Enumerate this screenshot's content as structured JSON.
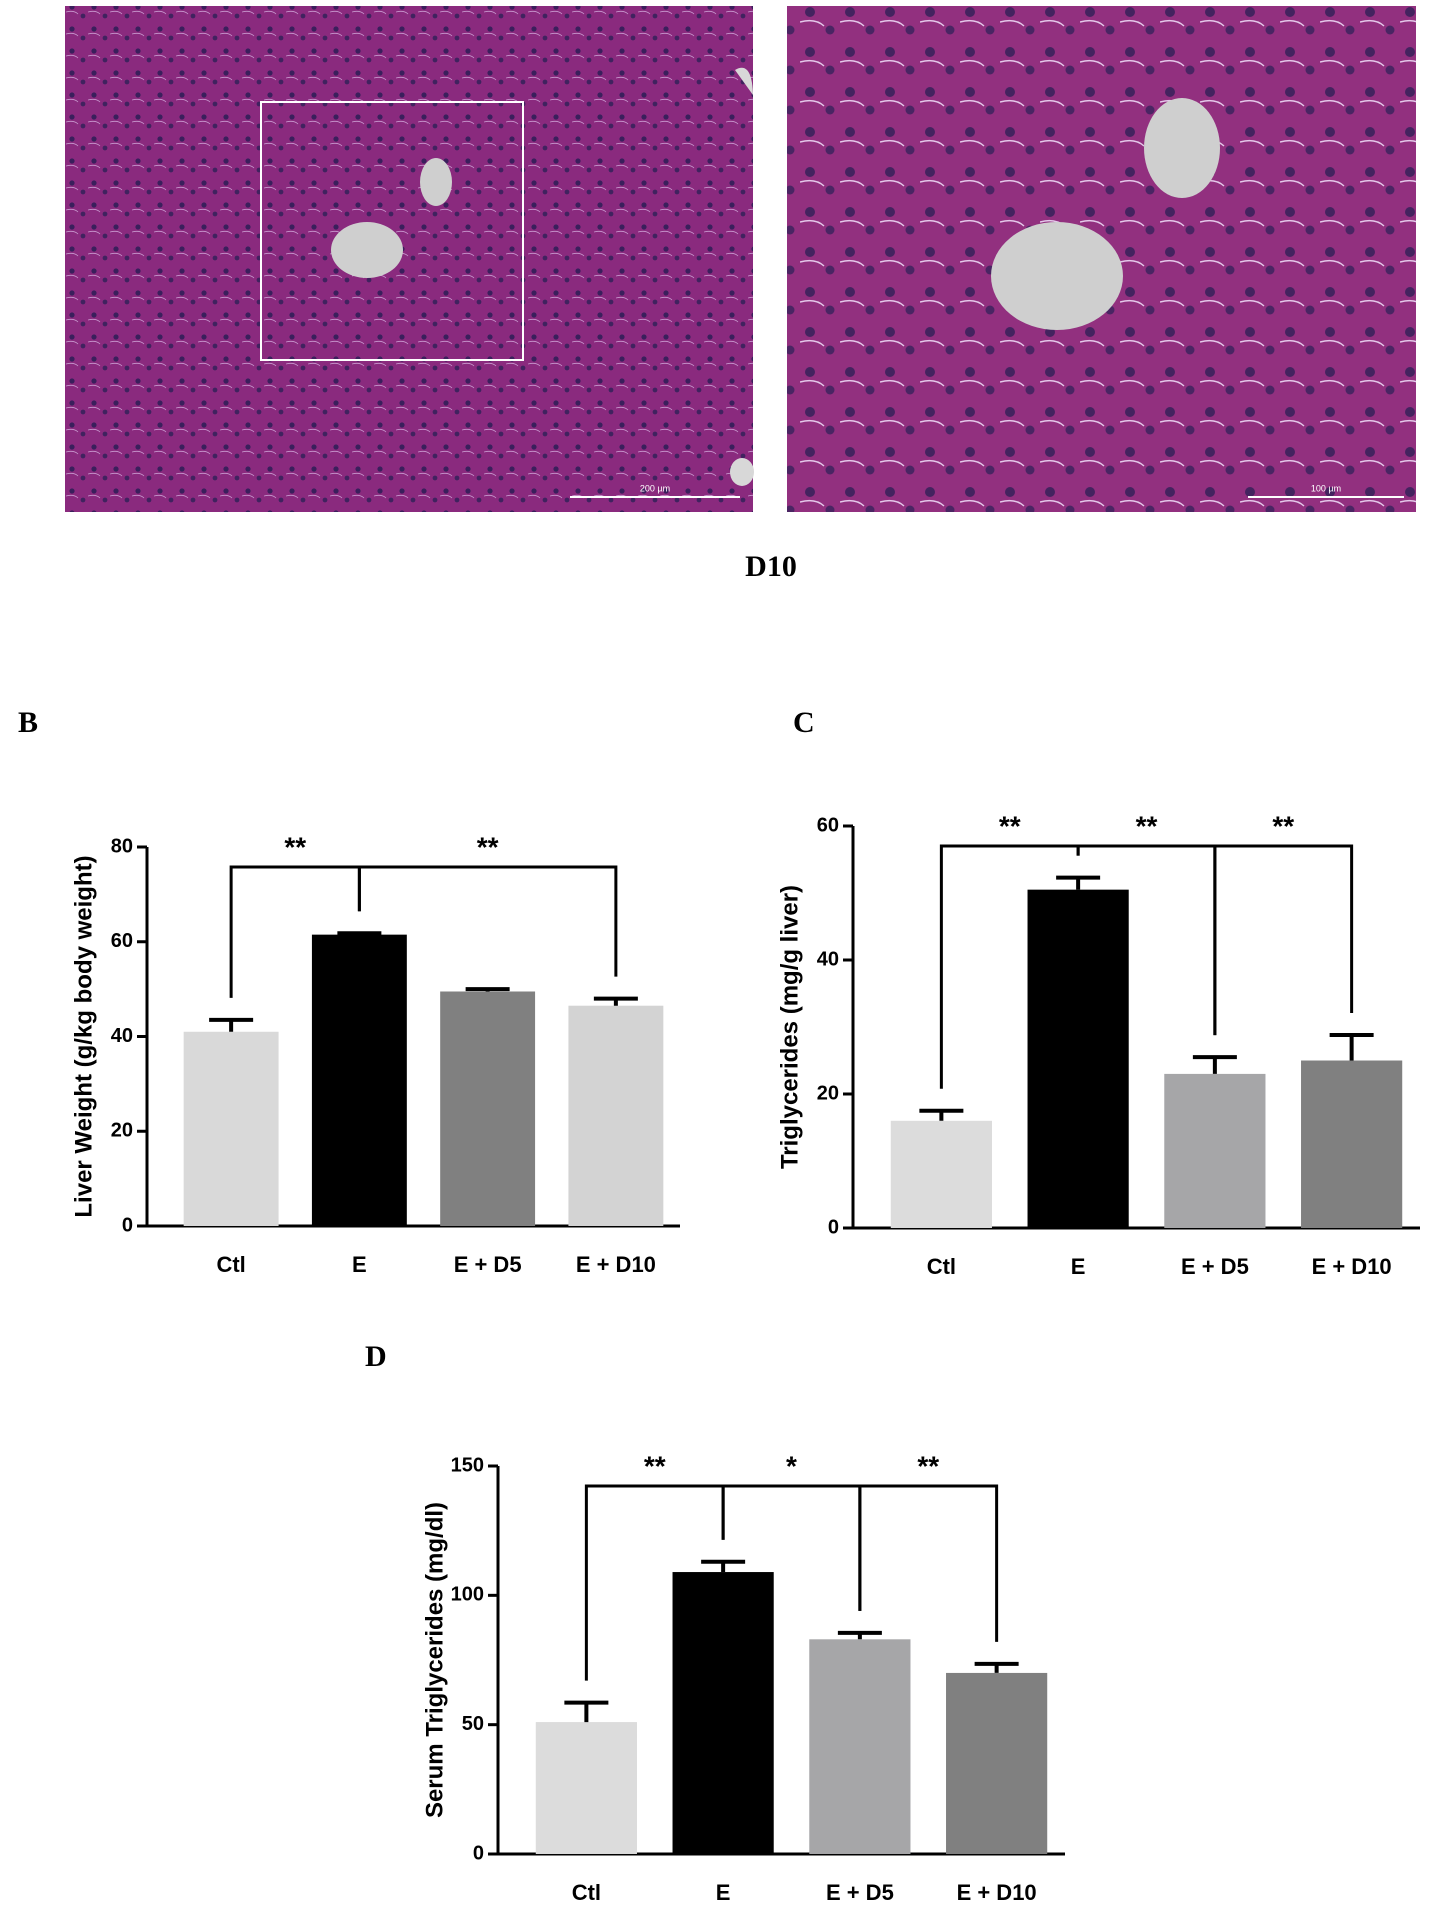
{
  "figure": {
    "images": [
      {
        "scale_bar": "200 µm"
      },
      {
        "scale_bar": "100 µm"
      }
    ],
    "caption": "D10"
  },
  "chart_data": [
    {
      "type": "bar",
      "panel": "B",
      "y_label": "Liver Weight (g/kg body weight)",
      "categories": [
        "Ctl",
        "E",
        "E + D5",
        "E + D10"
      ],
      "values": [
        41,
        61.5,
        49.5,
        46.5
      ],
      "errors": [
        2.5,
        0.3,
        0.5,
        1.5
      ],
      "colors": [
        "#d9d9d9",
        "#000000",
        "#808080",
        "#d3d3d3"
      ],
      "ylim": [
        0,
        80
      ],
      "yticks": [
        0,
        20,
        40,
        60,
        80
      ],
      "annotations": [
        "**",
        "**"
      ]
    },
    {
      "type": "bar",
      "panel": "C",
      "y_label": "Triglycerides (mg/g liver)",
      "categories": [
        "Ctl",
        "E",
        "E + D5",
        "E + D10"
      ],
      "values": [
        16,
        50.5,
        23,
        25
      ],
      "errors": [
        1.5,
        1.8,
        2.5,
        3.8
      ],
      "colors": [
        "#dcdcdc",
        "#000000",
        "#a6a6a8",
        "#808080"
      ],
      "ylim": [
        0,
        60
      ],
      "yticks": [
        0,
        20,
        40,
        60
      ],
      "annotations": [
        "**",
        "**",
        "**"
      ]
    },
    {
      "type": "bar",
      "panel": "D",
      "y_label": "Serum Triglycerides (mg/dl)",
      "categories": [
        "Ctl",
        "E",
        "E + D5",
        "E + D10"
      ],
      "values": [
        51,
        109,
        83,
        70
      ],
      "errors": [
        7.5,
        4,
        2.5,
        3.5
      ],
      "colors": [
        "#dcdcdc",
        "#000000",
        "#a6a6a8",
        "#808080"
      ],
      "ylim": [
        0,
        150
      ],
      "yticks": [
        0,
        50,
        100,
        150
      ],
      "annotations": [
        "**",
        "*",
        "**"
      ]
    }
  ]
}
